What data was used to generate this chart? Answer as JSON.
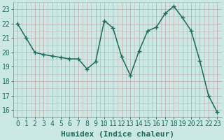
{
  "x": [
    0,
    1,
    2,
    3,
    4,
    5,
    6,
    7,
    8,
    9,
    10,
    11,
    12,
    13,
    14,
    15,
    16,
    17,
    18,
    19,
    20,
    21,
    22,
    23
  ],
  "y": [
    22.0,
    21.0,
    20.0,
    19.85,
    19.75,
    19.65,
    19.55,
    19.55,
    18.85,
    19.35,
    22.2,
    21.7,
    19.7,
    18.4,
    20.1,
    21.5,
    21.75,
    22.7,
    23.2,
    22.4,
    21.5,
    19.4,
    17.0,
    15.85
  ],
  "line_color": "#1a6b5a",
  "marker": "+",
  "marker_size": 4,
  "marker_lw": 1.0,
  "bg_color": "#cce8e4",
  "grid_color": "#c4b0b0",
  "xlabel": "Humidex (Indice chaleur)",
  "xlim": [
    -0.5,
    23.5
  ],
  "ylim": [
    15.5,
    23.5
  ],
  "yticks": [
    16,
    17,
    18,
    19,
    20,
    21,
    22,
    23
  ],
  "xticks": [
    0,
    1,
    2,
    3,
    4,
    5,
    6,
    7,
    8,
    9,
    10,
    11,
    12,
    13,
    14,
    15,
    16,
    17,
    18,
    19,
    20,
    21,
    22,
    23
  ],
  "xlabel_fontsize": 8,
  "tick_fontsize": 7,
  "line_width": 1.1
}
